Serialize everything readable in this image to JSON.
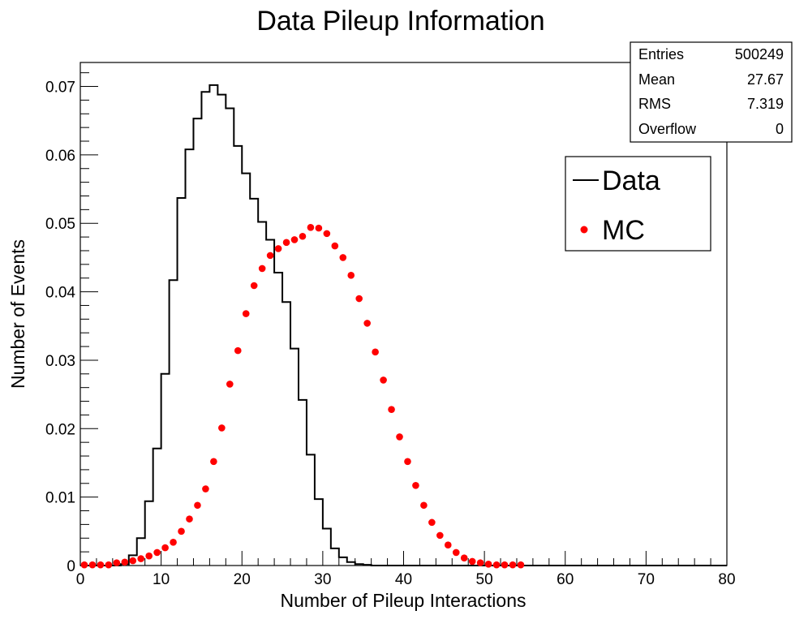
{
  "chart_data": {
    "type": "histogram",
    "title": "Data Pileup Information",
    "xlabel": "Number of Pileup Interactions",
    "ylabel": "Number of Events",
    "xlim": [
      0,
      80
    ],
    "ylim": [
      0,
      0.0735
    ],
    "x_ticks": [
      0,
      10,
      20,
      30,
      40,
      50,
      60,
      70,
      80
    ],
    "x_tick_labels": [
      "0",
      "10",
      "20",
      "30",
      "40",
      "50",
      "60",
      "70",
      "80"
    ],
    "y_ticks": [
      0,
      0.01,
      0.02,
      0.03,
      0.04,
      0.05,
      0.06,
      0.07
    ],
    "y_tick_labels": [
      "0",
      "0.01",
      "0.02",
      "0.03",
      "0.04",
      "0.05",
      "0.06",
      "0.07"
    ],
    "grid": false,
    "bin_width": 1,
    "stats": {
      "rows": [
        {
          "label": "Entries",
          "value": "500249"
        },
        {
          "label": "Mean",
          "value": "27.67"
        },
        {
          "label": "RMS",
          "value": "7.319"
        },
        {
          "label": "Overflow",
          "value": "0"
        }
      ]
    },
    "legend": {
      "position": "top-right",
      "entries": [
        {
          "label": "Data",
          "style": "line",
          "color": "#000000"
        },
        {
          "label": "MC",
          "style": "marker",
          "color": "#ff0000"
        }
      ]
    },
    "series": [
      {
        "name": "Data",
        "style": "step",
        "color": "#000000",
        "bin_edges_start": 0,
        "values": [
          0,
          0,
          0,
          0,
          0,
          0.0002,
          0.0015,
          0.004,
          0.0094,
          0.0171,
          0.028,
          0.0417,
          0.0537,
          0.0608,
          0.0653,
          0.0692,
          0.0702,
          0.0688,
          0.0668,
          0.0613,
          0.0573,
          0.0536,
          0.0502,
          0.0476,
          0.0428,
          0.0385,
          0.0317,
          0.0242,
          0.0162,
          0.0097,
          0.0054,
          0.0025,
          0.0012,
          0.0005,
          0.0002,
          0.0001,
          0,
          0,
          0,
          0,
          0,
          0,
          0,
          0,
          0,
          0,
          0,
          0,
          0,
          0,
          0,
          0,
          0,
          0,
          0,
          0,
          0,
          0,
          0,
          0,
          0,
          0,
          0,
          0,
          0,
          0,
          0,
          0,
          0,
          0,
          0,
          0,
          0,
          0,
          0,
          0,
          0,
          0,
          0,
          0
        ]
      },
      {
        "name": "MC",
        "style": "marker",
        "color": "#ff0000",
        "x": [
          0.5,
          1.5,
          2.5,
          3.5,
          4.5,
          5.5,
          6.5,
          7.5,
          8.5,
          9.5,
          10.5,
          11.5,
          12.5,
          13.5,
          14.5,
          15.5,
          16.5,
          17.5,
          18.5,
          19.5,
          20.5,
          21.5,
          22.5,
          23.5,
          24.5,
          25.5,
          26.5,
          27.5,
          28.5,
          29.5,
          30.5,
          31.5,
          32.5,
          33.5,
          34.5,
          35.5,
          36.5,
          37.5,
          38.5,
          39.5,
          40.5,
          41.5,
          42.5,
          43.5,
          44.5,
          45.5,
          46.5,
          47.5,
          48.5,
          49.5,
          50.5,
          51.5,
          52.5,
          53.5,
          54.5
        ],
        "y": [
          0.0001,
          0.0001,
          0.0001,
          0.0001,
          0.0004,
          0.0005,
          0.0007,
          0.001,
          0.0014,
          0.0019,
          0.0026,
          0.0034,
          0.005,
          0.0068,
          0.0088,
          0.0112,
          0.0152,
          0.0201,
          0.0265,
          0.0314,
          0.0368,
          0.0409,
          0.0434,
          0.0453,
          0.0463,
          0.0472,
          0.0476,
          0.0481,
          0.0494,
          0.0493,
          0.0485,
          0.0467,
          0.045,
          0.0424,
          0.039,
          0.0354,
          0.0312,
          0.0271,
          0.0228,
          0.0188,
          0.0152,
          0.0117,
          0.0088,
          0.0063,
          0.0044,
          0.003,
          0.0019,
          0.0011,
          0.0006,
          0.0004,
          0.0002,
          0.0001,
          0.0001,
          0.0001,
          0.0001
        ]
      }
    ]
  }
}
